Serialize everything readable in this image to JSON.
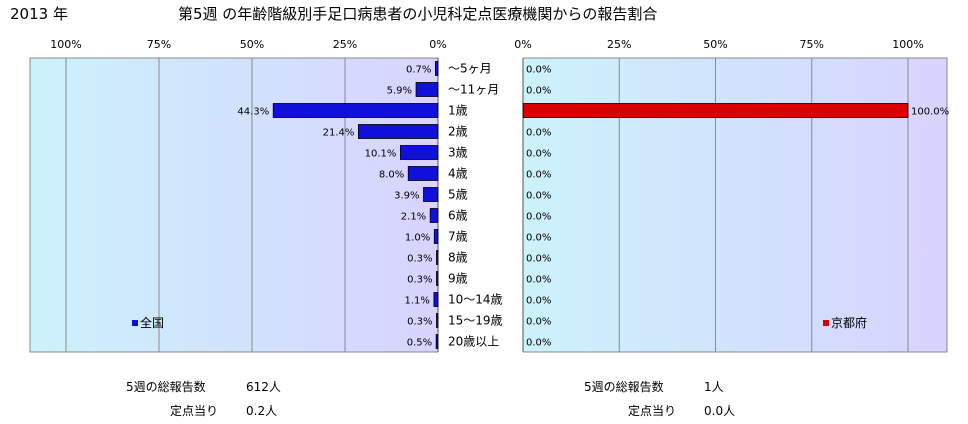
{
  "header": {
    "year": "2013 年",
    "title": "第5週 の年齢階級別手足口病患者の小児科定点医療機関からの報告割合"
  },
  "chart_data": [
    {
      "type": "bar",
      "orientation": "horizontal",
      "direction": "right-to-left",
      "xlim": [
        0,
        100
      ],
      "ticks": [
        "100%",
        "75%",
        "50%",
        "25%",
        "0%"
      ],
      "legend": "全国",
      "legend_position": "bottom-left",
      "color": "#1010d8",
      "categories": [
        "～5ヶ月",
        "～11ヶ月",
        "1歳",
        "2歳",
        "3歳",
        "4歳",
        "5歳",
        "6歳",
        "7歳",
        "8歳",
        "9歳",
        "10～14歳",
        "15～19歳",
        "20歳以上"
      ],
      "values": [
        0.7,
        5.9,
        44.3,
        21.4,
        10.1,
        8.0,
        3.9,
        2.1,
        1.0,
        0.3,
        0.3,
        1.1,
        0.3,
        0.5
      ],
      "labels": [
        "0.7%",
        "5.9%",
        "44.3%",
        "21.4%",
        "10.1%",
        "8.0%",
        "3.9%",
        "2.1%",
        "1.0%",
        "0.3%",
        "0.3%",
        "1.1%",
        "0.3%",
        "0.5%"
      ]
    },
    {
      "type": "bar",
      "orientation": "horizontal",
      "direction": "left-to-right",
      "xlim": [
        0,
        100
      ],
      "ticks": [
        "0%",
        "25%",
        "50%",
        "75%",
        "100%"
      ],
      "legend": "京都府",
      "legend_position": "bottom-right",
      "color": "#d80000",
      "categories": [
        "～5ヶ月",
        "～11ヶ月",
        "1歳",
        "2歳",
        "3歳",
        "4歳",
        "5歳",
        "6歳",
        "7歳",
        "8歳",
        "9歳",
        "10～14歳",
        "15～19歳",
        "20歳以上"
      ],
      "values": [
        0.0,
        0.0,
        100.0,
        0.0,
        0.0,
        0.0,
        0.0,
        0.0,
        0.0,
        0.0,
        0.0,
        0.0,
        0.0,
        0.0
      ],
      "labels": [
        "0.0%",
        "0.0%",
        "100.0%",
        "0.0%",
        "0.0%",
        "0.0%",
        "0.0%",
        "0.0%",
        "0.0%",
        "0.0%",
        "0.0%",
        "0.0%",
        "0.0%",
        "0.0%"
      ]
    }
  ],
  "summary": {
    "national": {
      "total_label": "5週の総報告数",
      "total_value": "612人",
      "per_label": "定点当り",
      "per_value": "0.2人"
    },
    "kyoto": {
      "total_label": "5週の総報告数",
      "total_value": "1人",
      "per_label": "定点当り",
      "per_value": "0.0人"
    }
  }
}
